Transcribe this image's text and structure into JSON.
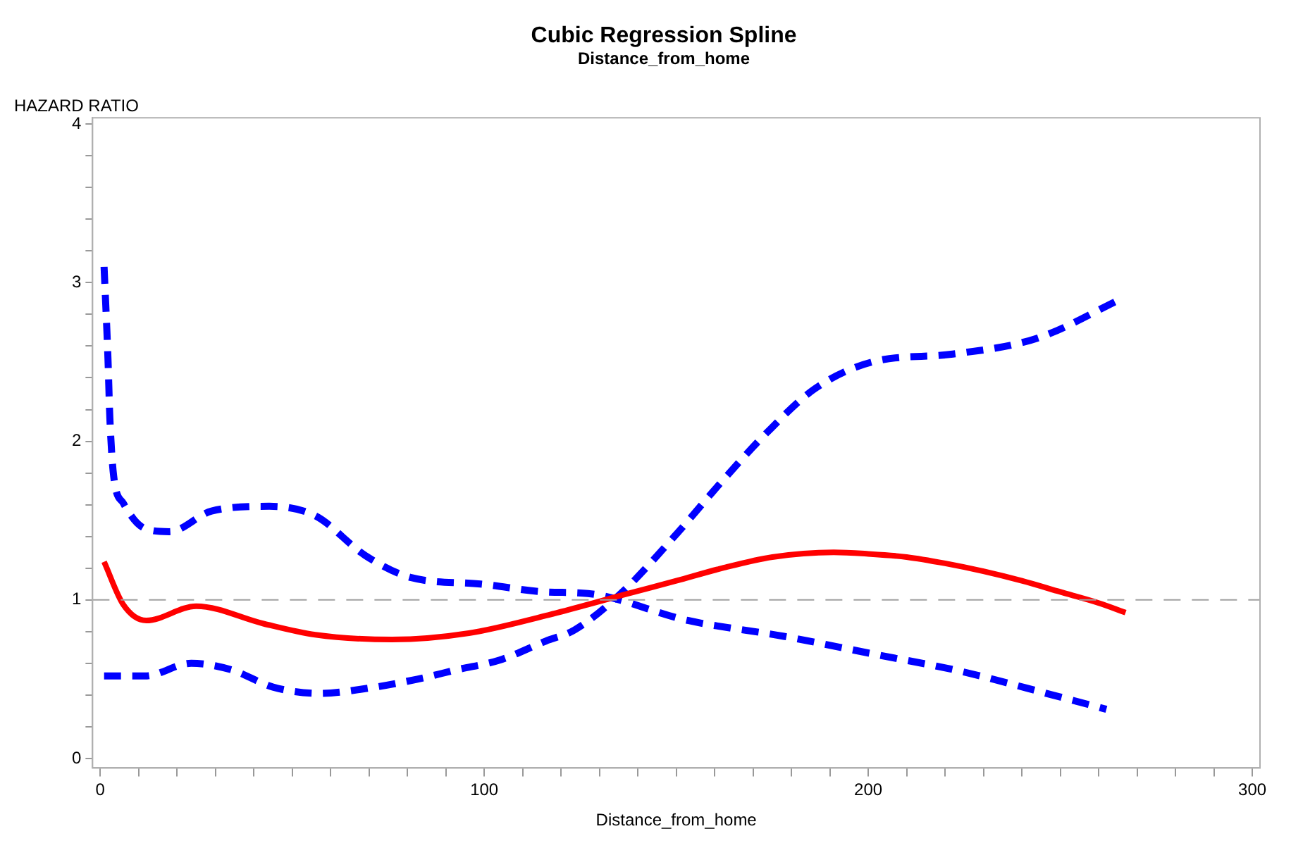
{
  "chart_data": {
    "type": "line",
    "title": "Cubic Regression Spline",
    "subtitle": "Distance_from_home",
    "xlabel": "Distance_from_home",
    "ylabel": "HAZARD RATIO",
    "xlim": [
      -2,
      302
    ],
    "ylim": [
      -0.06,
      4.04
    ],
    "xticks": [
      0,
      {
        "value": 10,
        "label": null
      },
      {
        "value": 20,
        "label": null
      },
      {
        "value": 30,
        "label": null
      },
      {
        "value": 40,
        "label": null
      },
      {
        "value": 50,
        "label": null
      },
      {
        "value": 60,
        "label": null
      },
      {
        "value": 70,
        "label": null
      },
      {
        "value": 80,
        "label": null
      },
      {
        "value": 90,
        "label": null
      },
      100,
      {
        "value": 110,
        "label": null
      },
      {
        "value": 120,
        "label": null
      },
      {
        "value": 130,
        "label": null
      },
      {
        "value": 140,
        "label": null
      },
      {
        "value": 150,
        "label": null
      },
      {
        "value": 160,
        "label": null
      },
      {
        "value": 170,
        "label": null
      },
      {
        "value": 180,
        "label": null
      },
      {
        "value": 190,
        "label": null
      },
      200,
      {
        "value": 210,
        "label": null
      },
      {
        "value": 220,
        "label": null
      },
      {
        "value": 230,
        "label": null
      },
      {
        "value": 240,
        "label": null
      },
      {
        "value": 250,
        "label": null
      },
      {
        "value": 260,
        "label": null
      },
      {
        "value": 270,
        "label": null
      },
      {
        "value": 280,
        "label": null
      },
      {
        "value": 290,
        "label": null
      },
      300
    ],
    "yticks": [
      0,
      {
        "value": 0.2,
        "label": null
      },
      {
        "value": 0.4,
        "label": null
      },
      {
        "value": 0.6,
        "label": null
      },
      {
        "value": 0.8,
        "label": null
      },
      1,
      {
        "value": 1.2,
        "label": null
      },
      {
        "value": 1.4,
        "label": null
      },
      {
        "value": 1.6,
        "label": null
      },
      {
        "value": 1.8,
        "label": null
      },
      2,
      {
        "value": 2.2,
        "label": null
      },
      {
        "value": 2.4,
        "label": null
      },
      {
        "value": 2.6,
        "label": null
      },
      {
        "value": 2.8,
        "label": null
      },
      3,
      {
        "value": 3.2,
        "label": null
      },
      {
        "value": 3.4,
        "label": null
      },
      {
        "value": 3.6,
        "label": null
      },
      {
        "value": 3.8,
        "label": null
      },
      4
    ],
    "grid": false,
    "legend": false,
    "marker": "none",
    "ref_lines": [
      {
        "axis": "y",
        "value": 1,
        "color": "#a0a0a0",
        "line_style": "dashed"
      }
    ],
    "series": [
      {
        "color": "#ff0000",
        "line_style": "solid",
        "x": [
          1,
          6,
          12,
          25,
          42.5,
          56,
          76,
          96,
          116,
          127,
          136,
          150,
          162,
          175,
          191,
          200,
          210,
          220,
          230,
          240,
          250,
          260,
          267
        ],
        "values": [
          1.24,
          0.97,
          0.87,
          0.96,
          0.85,
          0.78,
          0.75,
          0.79,
          0.9,
          0.97,
          1.03,
          1.12,
          1.2,
          1.27,
          1.3,
          1.29,
          1.27,
          1.23,
          1.18,
          1.12,
          1.05,
          0.98,
          0.92
        ]
      },
      {
        "color": "#0000ff",
        "line_style": "dashed",
        "x": [
          1,
          2,
          2.5,
          3.5,
          6,
          11.6,
          18,
          29,
          44,
          56,
          69,
          81,
          99,
          116,
          127,
          153,
          178,
          201,
          224,
          248,
          262
        ],
        "values": [
          3.1,
          2.53,
          2.15,
          1.78,
          1.61,
          1.45,
          1.43,
          1.56,
          1.59,
          1.53,
          1.28,
          1.14,
          1.1,
          1.05,
          1.04,
          0.87,
          0.77,
          0.66,
          0.55,
          0.4,
          0.31
        ]
      },
      {
        "color": "#0000ff",
        "line_style": "dashed",
        "x": [
          1,
          11.6,
          23.7,
          34,
          45,
          57,
          69,
          82.6,
          93,
          104,
          116,
          123.5,
          136,
          149.5,
          162,
          173,
          186,
          201,
          222,
          244,
          266
        ],
        "values": [
          0.52,
          0.52,
          0.6,
          0.56,
          0.45,
          0.41,
          0.44,
          0.5,
          0.56,
          0.62,
          0.74,
          0.81,
          1.05,
          1.4,
          1.75,
          2.04,
          2.33,
          2.5,
          2.55,
          2.65,
          2.9
        ]
      }
    ]
  }
}
